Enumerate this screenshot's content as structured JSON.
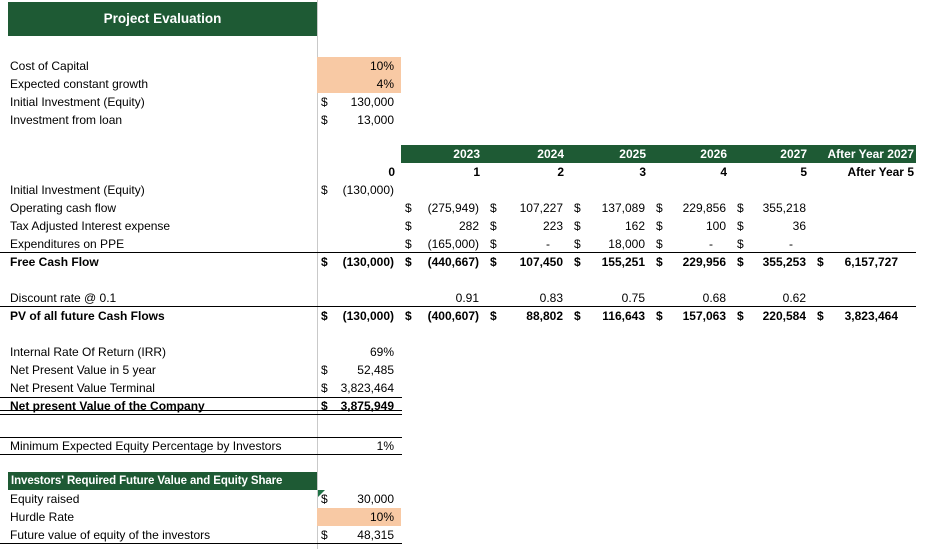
{
  "colors": {
    "header_green": "#1E5A34",
    "highlight_orange": "#F8C9A4",
    "marker_green": "#1E7145",
    "gridline": "#C9C9C9",
    "border": "#000000"
  },
  "sheet": {
    "title": "Project Evaluation",
    "section_title": "Investors' Required Future Value and Equity Share",
    "years": [
      "2023",
      "2024",
      "2025",
      "2026",
      "2027",
      "After Year 2027"
    ],
    "periods": [
      "0",
      "1",
      "2",
      "3",
      "4",
      "5",
      "After Year 5"
    ],
    "rows": [
      {
        "t": "gap",
        "h": 2
      },
      {
        "t": "title"
      },
      {
        "t": "gap",
        "h": 21
      },
      {
        "t": "row",
        "label": "Cost of Capital",
        "cells": [
          {
            "col": 0,
            "val": "10%",
            "bg": true
          }
        ]
      },
      {
        "t": "row",
        "label": "Expected constant growth",
        "cells": [
          {
            "col": 0,
            "val": "4%",
            "bg": true
          }
        ]
      },
      {
        "t": "row",
        "label": "Initial Investment (Equity)",
        "cells": [
          {
            "col": 0,
            "cur": "$",
            "val": "130,000"
          }
        ]
      },
      {
        "t": "row",
        "label": "Investment from loan",
        "cells": [
          {
            "col": 0,
            "cur": "$",
            "val": "13,000"
          }
        ]
      },
      {
        "t": "gap",
        "h": 16
      },
      {
        "t": "years"
      },
      {
        "t": "periods"
      },
      {
        "t": "row",
        "label": "Initial Investment (Equity)",
        "cells": [
          {
            "col": 0,
            "cur": "$",
            "val": "(130,000)"
          }
        ]
      },
      {
        "t": "row",
        "label": "Operating cash flow",
        "cells": [
          {
            "col": 1,
            "cur": "$",
            "val": "(275,949)"
          },
          {
            "col": 2,
            "cur": "$",
            "val": "107,227"
          },
          {
            "col": 3,
            "cur": "$",
            "val": "137,089"
          },
          {
            "col": 4,
            "cur": "$",
            "val": "229,856"
          },
          {
            "col": 5,
            "cur": "$",
            "val": "355,218"
          }
        ]
      },
      {
        "t": "row",
        "label": "Tax Adjusted Interest expense",
        "cells": [
          {
            "col": 1,
            "cur": "$",
            "val": "282"
          },
          {
            "col": 2,
            "cur": "$",
            "val": "223"
          },
          {
            "col": 3,
            "cur": "$",
            "val": "162"
          },
          {
            "col": 4,
            "cur": "$",
            "val": "100"
          },
          {
            "col": 5,
            "cur": "$",
            "val": "36"
          }
        ]
      },
      {
        "t": "row",
        "label": "Expenditures on PPE",
        "cells": [
          {
            "col": 1,
            "cur": "$",
            "val": "(165,000)"
          },
          {
            "col": 2,
            "cur": "$",
            "val": "-",
            "dash": true
          },
          {
            "col": 3,
            "cur": "$",
            "val": "18,000"
          },
          {
            "col": 4,
            "cur": "$",
            "val": "-",
            "dash": true
          },
          {
            "col": 5,
            "cur": "$",
            "val": "-",
            "dash": true
          }
        ],
        "rules": [
          {
            "edge": "bottom",
            "span": "full",
            "style": "single"
          }
        ]
      },
      {
        "t": "row",
        "label": "Free Cash Flow",
        "bold": true,
        "cells": [
          {
            "col": 0,
            "cur": "$",
            "val": "(130,000)"
          },
          {
            "col": 1,
            "cur": "$",
            "val": "(440,667)"
          },
          {
            "col": 2,
            "cur": "$",
            "val": "107,450"
          },
          {
            "col": 3,
            "cur": "$",
            "val": "155,251"
          },
          {
            "col": 4,
            "cur": "$",
            "val": "229,956"
          },
          {
            "col": 5,
            "cur": "$",
            "val": "355,253"
          },
          {
            "col": 6,
            "cur": "$",
            "val": "6,157,727"
          }
        ]
      },
      {
        "t": "gap",
        "h": 18
      },
      {
        "t": "row",
        "label": "Discount rate @ 0.1",
        "cells": [
          {
            "col": 1,
            "val": "0.91"
          },
          {
            "col": 2,
            "val": "0.83"
          },
          {
            "col": 3,
            "val": "0.75"
          },
          {
            "col": 4,
            "val": "0.68"
          },
          {
            "col": 5,
            "val": "0.62"
          }
        ],
        "rules": [
          {
            "edge": "bottom",
            "span": "full",
            "style": "single"
          }
        ]
      },
      {
        "t": "row",
        "label": "PV of all future Cash Flows",
        "bold": true,
        "cells": [
          {
            "col": 0,
            "cur": "$",
            "val": "(130,000)"
          },
          {
            "col": 1,
            "cur": "$",
            "val": "(400,607)"
          },
          {
            "col": 2,
            "cur": "$",
            "val": "88,802"
          },
          {
            "col": 3,
            "cur": "$",
            "val": "116,643"
          },
          {
            "col": 4,
            "cur": "$",
            "val": "157,063"
          },
          {
            "col": 5,
            "cur": "$",
            "val": "220,584"
          },
          {
            "col": 6,
            "cur": "$",
            "val": "3,823,464"
          }
        ]
      },
      {
        "t": "gap",
        "h": 18
      },
      {
        "t": "row",
        "label": "Internal Rate Of Return (IRR)",
        "cells": [
          {
            "col": 0,
            "val": "69%"
          }
        ]
      },
      {
        "t": "row",
        "label": "Net Present Value in 5 year",
        "cells": [
          {
            "col": 0,
            "cur": "$",
            "val": "52,485"
          }
        ]
      },
      {
        "t": "row",
        "label": "Net Present Value Terminal",
        "cells": [
          {
            "col": 0,
            "cur": "$",
            "val": "3,823,464"
          }
        ]
      },
      {
        "t": "row",
        "label": "Net present Value of the Company",
        "bold": true,
        "cells": [
          {
            "col": 0,
            "cur": "$",
            "val": "3,875,949"
          }
        ],
        "rules": [
          {
            "edge": "top",
            "span": "two",
            "style": "single"
          },
          {
            "edge": "bottom",
            "span": "two",
            "style": "double"
          }
        ]
      },
      {
        "t": "gap",
        "h": 22
      },
      {
        "t": "row",
        "label": "Minimum Expected Equity Percentage by Investors",
        "cells": [
          {
            "col": 0,
            "val": "1%"
          }
        ],
        "rules": [
          {
            "edge": "top",
            "span": "two",
            "style": "single"
          },
          {
            "edge": "bottom",
            "span": "two",
            "style": "single"
          }
        ]
      },
      {
        "t": "gap",
        "h": 17
      },
      {
        "t": "section"
      },
      {
        "t": "row",
        "label": "Equity raised",
        "cells": [
          {
            "col": 0,
            "cur": "$",
            "val": "30,000",
            "marker": true
          }
        ]
      },
      {
        "t": "row",
        "label": "Hurdle Rate",
        "cells": [
          {
            "col": 0,
            "val": "10%",
            "bg": true
          }
        ]
      },
      {
        "t": "row",
        "label": "Future value of equity of the investors",
        "cells": [
          {
            "col": 0,
            "cur": "$",
            "val": "48,315"
          }
        ],
        "rules": [
          {
            "edge": "bottom",
            "span": "two",
            "style": "single"
          }
        ]
      }
    ]
  }
}
